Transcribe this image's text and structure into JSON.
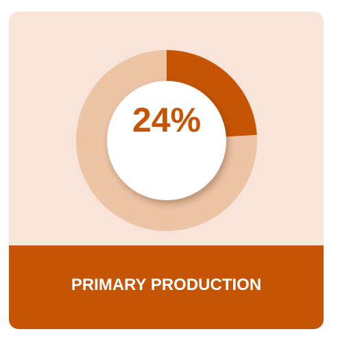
{
  "chart_data": {
    "type": "pie",
    "style": "donut",
    "values": [
      24,
      76
    ],
    "value_label": "24%",
    "category_label": "PRIMARY PRODUCTION"
  },
  "colors": {
    "background": "#f8e4d8",
    "highlight": "#c55504",
    "remainder": "#ecc4a6",
    "center": "#ffffff",
    "footer": "#c55504",
    "footer_text": "#ffffff"
  }
}
